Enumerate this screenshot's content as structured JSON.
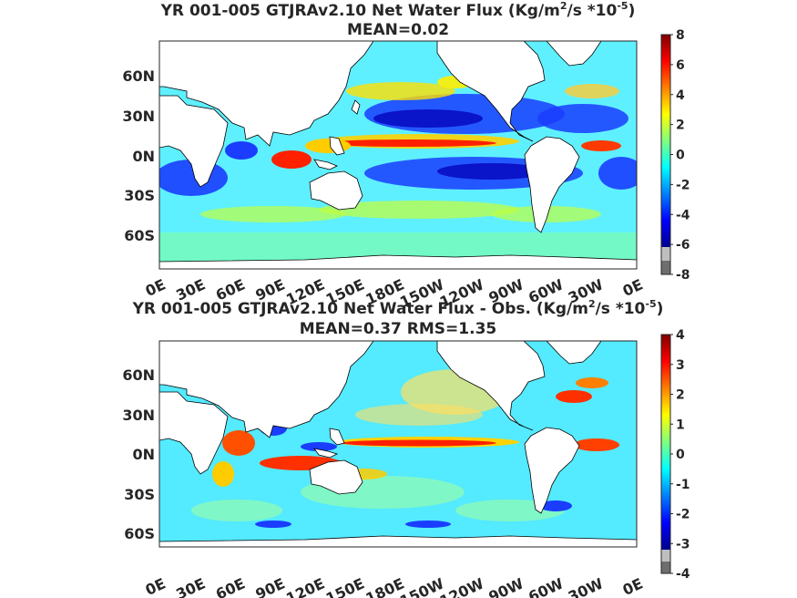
{
  "chart_data": [
    {
      "type": "heatmap",
      "title_main": "YR 001-005 GTJRAv2.10  Net Water Flux (Kg/m",
      "title_sup1": "2",
      "title_mid": "/s *10",
      "title_sup2": "-5",
      "title_end": ")",
      "subtitle": "MEAN=0.02",
      "lon_ticks": [
        "0E",
        "30E",
        "60E",
        "90E",
        "120E",
        "150E",
        "180E",
        "150W",
        "120W",
        "90W",
        "60W",
        "30W",
        "0E"
      ],
      "lat_ticks": [
        "60N",
        "30N",
        "0N",
        "30S",
        "60S"
      ],
      "lat_values": [
        60,
        30,
        0,
        -30,
        -60
      ],
      "colorbar": {
        "ticks": [
          "8",
          "6",
          "4",
          "2",
          "0",
          "-2",
          "-4",
          "-6",
          "-8"
        ],
        "range": [
          -8,
          8
        ]
      },
      "field_range": [
        -8,
        8
      ],
      "colormap": "jet",
      "land_color": "#ffffff"
    },
    {
      "type": "heatmap",
      "title_main": "YR 001-005 GTJRAv2.10  Net Water Flux - Obs. (Kg/m",
      "title_sup1": "2",
      "title_mid": "/s *10",
      "title_sup2": "-5",
      "title_end": ")",
      "subtitle": "MEAN=0.37 RMS=1.35",
      "lon_ticks": [
        "0E",
        "30E",
        "60E",
        "90E",
        "120E",
        "150E",
        "180E",
        "150W",
        "120W",
        "90W",
        "60W",
        "30W",
        "0E"
      ],
      "lat_ticks": [
        "60N",
        "30N",
        "0N",
        "30S",
        "60S"
      ],
      "lat_values": [
        60,
        30,
        0,
        -30,
        -60
      ],
      "colorbar": {
        "ticks": [
          "4",
          "3",
          "2",
          "1",
          "0",
          "-1",
          "-2",
          "-3",
          "-4"
        ],
        "range": [
          -4,
          4
        ]
      },
      "field_range": [
        -4,
        4
      ],
      "colormap": "jet",
      "land_color": "#ffffff"
    }
  ]
}
